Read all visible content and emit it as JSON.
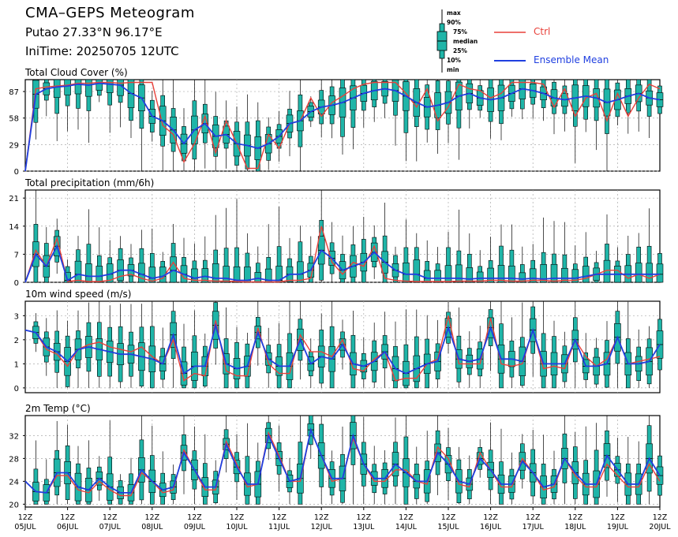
{
  "header": {
    "title": "CMA–GEPS Meteogram",
    "location": "Putao 27.33°N 96.17°E",
    "init_time": "IniTime: 20250705 12UTC"
  },
  "legend": {
    "box_labels": {
      "max": "max",
      "p90": "90%",
      "p75": "75%",
      "median": "median",
      "p25": "25%",
      "p10": "10%",
      "min": "min"
    },
    "ctrl_label": "Ctrl",
    "mean_label": "Ensemble Mean"
  },
  "colors": {
    "ctrl": "#e8413a",
    "mean": "#1f3fe0",
    "box": "#1fb5a8",
    "grid": "#aaaaaa"
  },
  "chart_data": [
    {
      "type": "box",
      "title": "Total Cloud Cover (%)",
      "ylim": [
        0,
        100
      ],
      "yticks": [
        0,
        29,
        58,
        87
      ],
      "x_step_hours": 6,
      "start_offset": 0,
      "mean": [
        0,
        84,
        90,
        92,
        93,
        95,
        94,
        96,
        95,
        94,
        85,
        80,
        60,
        55,
        45,
        30,
        45,
        52,
        38,
        40,
        30,
        28,
        25,
        30,
        38,
        52,
        55,
        65,
        70,
        72,
        75,
        80,
        85,
        88,
        90,
        88,
        82,
        75,
        70,
        72,
        75,
        82,
        85,
        80,
        78,
        80,
        85,
        90,
        88,
        85,
        80,
        78,
        80,
        82,
        80,
        75,
        78,
        82,
        85,
        80,
        78
      ],
      "ctrl": [
        0,
        90,
        92,
        93,
        94,
        96,
        96,
        97,
        97,
        96,
        97,
        97,
        97,
        50,
        40,
        10,
        30,
        60,
        20,
        55,
        30,
        3,
        3,
        40,
        25,
        52,
        55,
        80,
        60,
        75,
        82,
        90,
        95,
        97,
        97,
        97,
        85,
        70,
        90,
        55,
        70,
        95,
        90,
        88,
        80,
        85,
        97,
        97,
        97,
        95,
        70,
        90,
        60,
        80,
        85,
        55,
        85,
        60,
        80,
        95,
        90
      ]
    },
    {
      "type": "box",
      "title": "Total precipitation (mm/6h)",
      "ylim": [
        0,
        23
      ],
      "yticks": [
        0,
        7,
        14,
        21
      ],
      "x_step_hours": 6,
      "start_offset": 0,
      "mean": [
        0,
        7,
        4,
        9,
        0.5,
        2,
        1.5,
        1.5,
        2,
        3,
        3,
        2,
        1,
        1.5,
        3,
        2,
        1,
        1.5,
        1,
        1,
        0.5,
        0.5,
        1,
        0.5,
        0.5,
        2,
        2,
        3,
        8,
        6,
        3,
        4,
        5,
        7.5,
        5,
        3,
        2,
        2,
        1,
        1,
        1,
        1,
        0.8,
        1,
        1,
        1,
        1,
        0.8,
        1,
        0.8,
        1,
        1,
        1,
        1.5,
        2,
        2,
        2,
        2,
        2,
        2,
        2
      ],
      "ctrl": [
        0,
        8,
        4,
        11,
        0.2,
        0.5,
        0.2,
        0.2,
        0.5,
        1.5,
        2,
        1,
        0.3,
        1,
        5,
        1,
        0.5,
        0.5,
        0.3,
        0.3,
        0.2,
        0.1,
        0.1,
        0.1,
        0.1,
        0.5,
        0.5,
        1,
        14,
        5,
        2,
        5,
        4,
        9,
        1,
        0.5,
        0.3,
        0.2,
        0.2,
        0.2,
        0.2,
        0.3,
        0.3,
        0.3,
        0.5,
        0.5,
        0.3,
        0.3,
        0.5,
        0.5,
        0.3,
        0.5,
        0.5,
        1,
        2,
        3,
        3,
        1,
        2,
        1,
        2
      ]
    },
    {
      "type": "box",
      "title": "10m wind speed (m/s)",
      "ylim": [
        -0.2,
        3.6
      ],
      "yticks": [
        0,
        1,
        2,
        3
      ],
      "x_step_hours": 6,
      "start_offset": 0,
      "mean": [
        2.4,
        2.3,
        1.7,
        1.5,
        1.1,
        1.6,
        1.7,
        1.6,
        1.5,
        1.4,
        1.4,
        1.3,
        1.2,
        1.0,
        2.2,
        0.6,
        0.9,
        0.9,
        2.6,
        1.0,
        0.8,
        0.9,
        2.3,
        1.2,
        0.9,
        0.9,
        2.0,
        1.0,
        1.3,
        1.2,
        1.8,
        1.0,
        0.9,
        1.1,
        1.5,
        0.8,
        0.6,
        0.8,
        1.0,
        1.1,
        2.5,
        1.2,
        1.1,
        1.2,
        2.5,
        1.2,
        1.2,
        1.1,
        2.4,
        1.0,
        1.0,
        1.0,
        2.0,
        0.9,
        0.9,
        1.0,
        2.1,
        1.0,
        1.0,
        1.1,
        1.8
      ],
      "ctrl": [
        2.4,
        2.3,
        1.6,
        1.4,
        0.9,
        1.6,
        1.8,
        1.9,
        1.7,
        1.6,
        1.5,
        1.7,
        1.3,
        1.0,
        2.0,
        0.3,
        0.6,
        0.5,
        2.8,
        0.7,
        0.5,
        0.5,
        2.5,
        1.0,
        0.6,
        0.6,
        2.2,
        1.5,
        1.5,
        1.3,
        2.0,
        0.8,
        0.7,
        1.2,
        1.5,
        0.3,
        0.4,
        0.4,
        1.0,
        1.2,
        3.0,
        1.0,
        1.0,
        1.0,
        2.9,
        1.0,
        0.9,
        1.0,
        2.4,
        0.8,
        0.9,
        0.8,
        2.0,
        1.3,
        0.9,
        1.2,
        2.1,
        1.0,
        1.1,
        1.2,
        1.3
      ]
    },
    {
      "type": "box",
      "title": "2m Temp (°C)",
      "ylim": [
        19.5,
        35.5
      ],
      "yticks": [
        20,
        24,
        28,
        32
      ],
      "x_step_hours": 6,
      "start_offset": 0,
      "mean": [
        24,
        22.2,
        22,
        25.5,
        25.5,
        23,
        22.5,
        24.5,
        23,
        22,
        22,
        26,
        24,
        22.5,
        23,
        29,
        26,
        23,
        23,
        30.5,
        26.5,
        23.5,
        23.5,
        32,
        28,
        24,
        24.5,
        33,
        28.5,
        24.5,
        24.5,
        32,
        27,
        24.5,
        24.5,
        27,
        25.5,
        24,
        24,
        29,
        27,
        24,
        23.5,
        28,
        26,
        23.5,
        23.5,
        27.5,
        25.5,
        23,
        23.5,
        28,
        25.5,
        23.5,
        23.5,
        28.5,
        26,
        23.5,
        23.5,
        28,
        25
      ],
      "ctrl": [
        24,
        22.2,
        22,
        25,
        25,
        22.5,
        22,
        24,
        22.5,
        21.5,
        21.5,
        25.5,
        24,
        22,
        22.5,
        29.5,
        26,
        22.5,
        22.5,
        31,
        27,
        23,
        23.5,
        32.5,
        28.5,
        24,
        24,
        33,
        28.5,
        24,
        24.5,
        31.5,
        27,
        24,
        24,
        26,
        26,
        24,
        23.5,
        30,
        28,
        23.5,
        23,
        29,
        26,
        23,
        23,
        28,
        25.5,
        22.5,
        23,
        28,
        25,
        23,
        23,
        27,
        25,
        23,
        23,
        27,
        24
      ]
    }
  ],
  "x_axis": {
    "hour_label": "12Z",
    "dates": [
      "05JUL",
      "06JUL",
      "07JUL",
      "08JUL",
      "09JUL",
      "10JUL",
      "11JUL",
      "12JUL",
      "13JUL",
      "14JUL",
      "15JUL",
      "16JUL",
      "17JUL",
      "18JUL",
      "19JUL",
      "20JUL"
    ]
  }
}
